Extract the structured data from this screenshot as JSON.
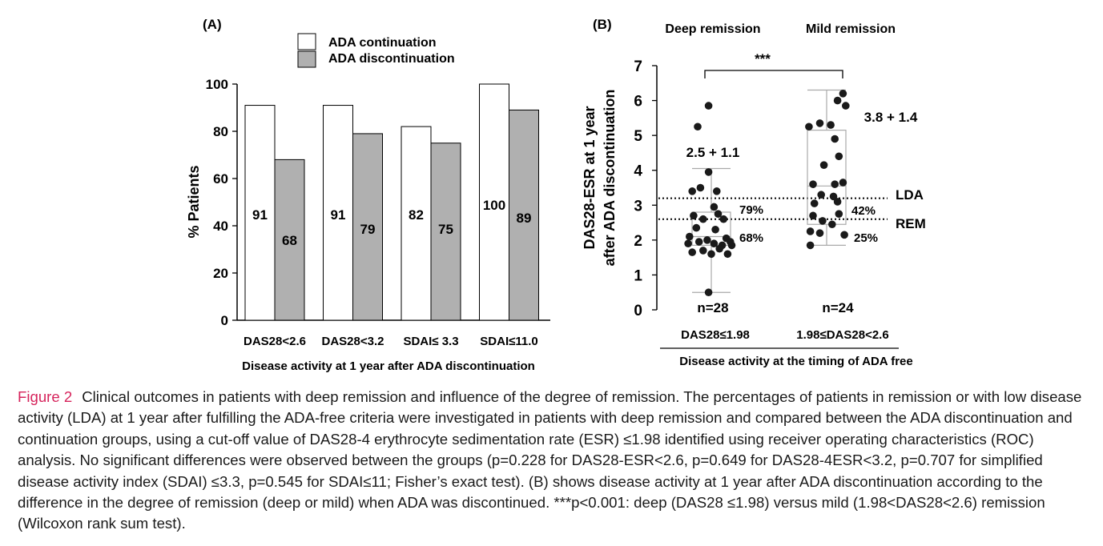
{
  "chart_data": [
    {
      "type": "bar",
      "panel_label": "(A)",
      "ylabel": "% Patients",
      "xlabel": "Disease activity at 1 year after ADA discontinuation",
      "ylim": [
        0,
        100
      ],
      "yticks": [
        "0",
        "20",
        "40",
        "60",
        "80",
        "100"
      ],
      "categories": [
        "DAS28<2.6",
        "DAS28<3.2",
        "SDAI≤ 3.3",
        "SDAI≤11.0"
      ],
      "series": [
        {
          "name": "ADA continuation",
          "values": [
            91,
            91,
            82,
            100
          ],
          "color": "#ffffff"
        },
        {
          "name": "ADA discontinuation",
          "values": [
            68,
            79,
            75,
            89
          ],
          "color": "#b0b0b0"
        }
      ],
      "legend_position": "top",
      "grid": false
    },
    {
      "type": "scatter",
      "panel_label": "(B)",
      "ylabel_line1": "DAS28-ESR at 1 year",
      "ylabel_line2": "after ADA discontinuation",
      "xlabel": "Disease activity at the timing of ADA free",
      "ylim": [
        0,
        7
      ],
      "yticks": [
        "0",
        "1",
        "2",
        "3",
        "4",
        "5",
        "6",
        "7"
      ],
      "groups": [
        {
          "header": "Deep remission",
          "category": "DAS28≤1.98",
          "n_label": "n=28",
          "mean_label": "2.5 + 1.1",
          "box": {
            "min": 0.5,
            "q1": 1.85,
            "median": 2.1,
            "q3": 2.8,
            "max": 4.05
          },
          "pct_above_lda": "79%",
          "pct_above_rem": "68%",
          "points": [
            [
              -0.02,
              5.85
            ],
            [
              -0.1,
              5.25
            ],
            [
              -0.14,
              3.4
            ],
            [
              -0.08,
              3.5
            ],
            [
              -0.02,
              3.95
            ],
            [
              0.04,
              3.4
            ],
            [
              0.02,
              2.95
            ],
            [
              -0.13,
              2.7
            ],
            [
              -0.06,
              2.6
            ],
            [
              0.05,
              2.75
            ],
            [
              0.09,
              2.6
            ],
            [
              -0.16,
              2.1
            ],
            [
              -0.11,
              2.35
            ],
            [
              0.03,
              2.3
            ],
            [
              0.11,
              2.05
            ],
            [
              0.14,
              1.95
            ],
            [
              -0.17,
              1.9
            ],
            [
              -0.09,
              1.95
            ],
            [
              -0.03,
              2.0
            ],
            [
              0.02,
              1.9
            ],
            [
              0.08,
              1.85
            ],
            [
              0.15,
              1.85
            ],
            [
              -0.14,
              1.65
            ],
            [
              -0.06,
              1.7
            ],
            [
              0.0,
              1.6
            ],
            [
              0.06,
              1.75
            ],
            [
              0.12,
              1.6
            ],
            [
              -0.02,
              0.5
            ]
          ]
        },
        {
          "header": "Mild remission",
          "category": "1.98≤DAS28<2.6",
          "n_label": "n=24",
          "mean_label": "3.8 + 1.4",
          "box": {
            "min": 1.85,
            "q1": 2.45,
            "median": 3.55,
            "q3": 5.15,
            "max": 6.3
          },
          "pct_above_lda": "42%",
          "pct_above_rem": "25%",
          "points": [
            [
              0.12,
              6.2
            ],
            [
              0.08,
              6.0
            ],
            [
              0.14,
              5.85
            ],
            [
              -0.05,
              5.35
            ],
            [
              -0.13,
              5.25
            ],
            [
              0.03,
              5.3
            ],
            [
              0.06,
              4.9
            ],
            [
              0.09,
              4.4
            ],
            [
              -0.02,
              4.15
            ],
            [
              0.12,
              3.65
            ],
            [
              0.06,
              3.6
            ],
            [
              -0.1,
              3.6
            ],
            [
              -0.04,
              3.3
            ],
            [
              0.05,
              3.25
            ],
            [
              -0.09,
              3.05
            ],
            [
              0.08,
              3.1
            ],
            [
              0.09,
              2.75
            ],
            [
              -0.1,
              2.7
            ],
            [
              -0.03,
              2.55
            ],
            [
              0.04,
              2.45
            ],
            [
              -0.12,
              2.25
            ],
            [
              -0.05,
              2.2
            ],
            [
              0.13,
              2.15
            ],
            [
              -0.12,
              1.85
            ]
          ]
        }
      ],
      "reference_lines": [
        {
          "label": "LDA",
          "value": 3.2
        },
        {
          "label": "REM",
          "value": 2.6
        }
      ],
      "significance": "***"
    }
  ],
  "caption": {
    "label": "Figure 2",
    "text": "Clinical outcomes in patients with deep remission and influence of the degree of remission. The percentages of patients in remission or with low disease activity (LDA) at 1 year after fulfilling the ADA-free criteria were investigated in patients with deep remission and compared between the ADA discontinuation and continuation groups, using a cut-off value of DAS28-4 erythrocyte sedimentation rate (ESR) ≤1.98 identified using receiver operating characteristics (ROC) analysis. No significant differences were observed between the groups (p=0.228 for DAS28-ESR<2.6, p=0.649 for DAS28-4ESR<3.2, p=0.707 for simplified disease activity index (SDAI) ≤3.3, p=0.545 for SDAI≤11; Fisher’s exact test). (B) shows disease activity at 1 year after ADA discontinuation according to the difference in the degree of remission (deep or mild) when ADA was discontinued. ***p<0.001: deep (DAS28 ≤1.98) versus mild (1.98<DAS28<2.6) remission (Wilcoxon rank sum test)."
  }
}
